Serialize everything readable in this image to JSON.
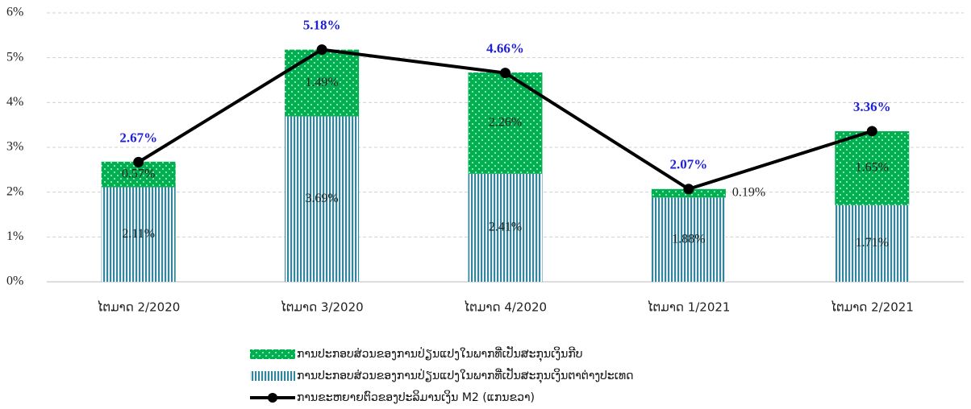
{
  "chart_data": {
    "type": "bar",
    "stacked": true,
    "categories": [
      "ໄຕມາດ 2/2020",
      "ໄຕມາດ 3/2020",
      "ໄຕມາດ 4/2020",
      "ໄຕມາດ 1/2021",
      "ໄຕມາດ 2/2021"
    ],
    "series": [
      {
        "name": "ການປະກອບສ່ວນຂອງການປ່ຽນແປງໃນພາກທີ່ເປັນສະກຸນເງິນຕາຕ່າງປະເທດ",
        "type": "bar",
        "pattern": "stripes",
        "color": "#31859c",
        "values": [
          2.11,
          3.69,
          2.41,
          1.88,
          1.71
        ],
        "value_labels": [
          "2.11%",
          "3.69%",
          "2.41%",
          "1.88%",
          "1.71%"
        ]
      },
      {
        "name": "ການປະກອບສ່ວນຂອງການປ່ຽນແປງໃນພາກທີ່ເປັນສະກຸນເງິນກີບ",
        "type": "bar",
        "pattern": "dots",
        "color": "#00b050",
        "values": [
          0.57,
          1.49,
          2.26,
          0.19,
          1.65
        ],
        "value_labels": [
          "0.57%",
          "1.49%",
          "2.26%",
          "0.19%",
          "1.65%"
        ]
      },
      {
        "name": "ການຂະຫຍາຍຕົວຂອງປະລິມານເງິນ M2 (ແກນຂວາ)",
        "type": "line",
        "color": "#000000",
        "values": [
          2.67,
          5.18,
          4.66,
          2.07,
          3.36
        ],
        "value_labels": [
          "2.67%",
          "5.18%",
          "4.66%",
          "2.07%",
          "3.36%"
        ]
      }
    ],
    "legend_order": [
      1,
      0,
      2
    ],
    "ylim": [
      0,
      6
    ],
    "yticks": [
      {
        "value": 0,
        "label": "0%"
      },
      {
        "value": 1,
        "label": "1%"
      },
      {
        "value": 2,
        "label": "2%"
      },
      {
        "value": 3,
        "label": "3%"
      },
      {
        "value": 4,
        "label": "4%"
      },
      {
        "value": 5,
        "label": "5%"
      },
      {
        "value": 6,
        "label": "6%"
      }
    ],
    "grid": true
  }
}
